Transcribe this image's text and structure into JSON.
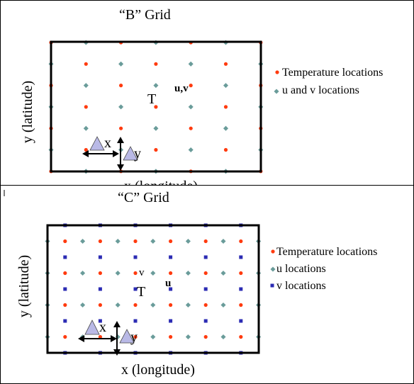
{
  "b_grid": {
    "title": "“B”  Grid",
    "y_label": "y (latitude)",
    "x_label": "x (longitude)",
    "t_label": "T",
    "uv_label": "u,v",
    "dx_label": "x",
    "dy_label": "y",
    "legend": {
      "temperature": "Temperature locations",
      "uv": "u and v locations"
    }
  },
  "c_grid": {
    "title": "“C”  Grid",
    "y_label": "y (latitude)",
    "x_label": "x (longitude)",
    "t_label": "T",
    "u_label": "u",
    "v_label": "v",
    "dx_label": "x",
    "dy_label": "y",
    "legend": {
      "temperature": "Temperature locations",
      "u": "u locations",
      "v": "v locations"
    }
  },
  "colors": {
    "temperature": "#ff3b0f",
    "uv": "#6a9c9a",
    "v": "#2b2bb3",
    "delta": "#b9b9e6",
    "frame": "#000000"
  }
}
